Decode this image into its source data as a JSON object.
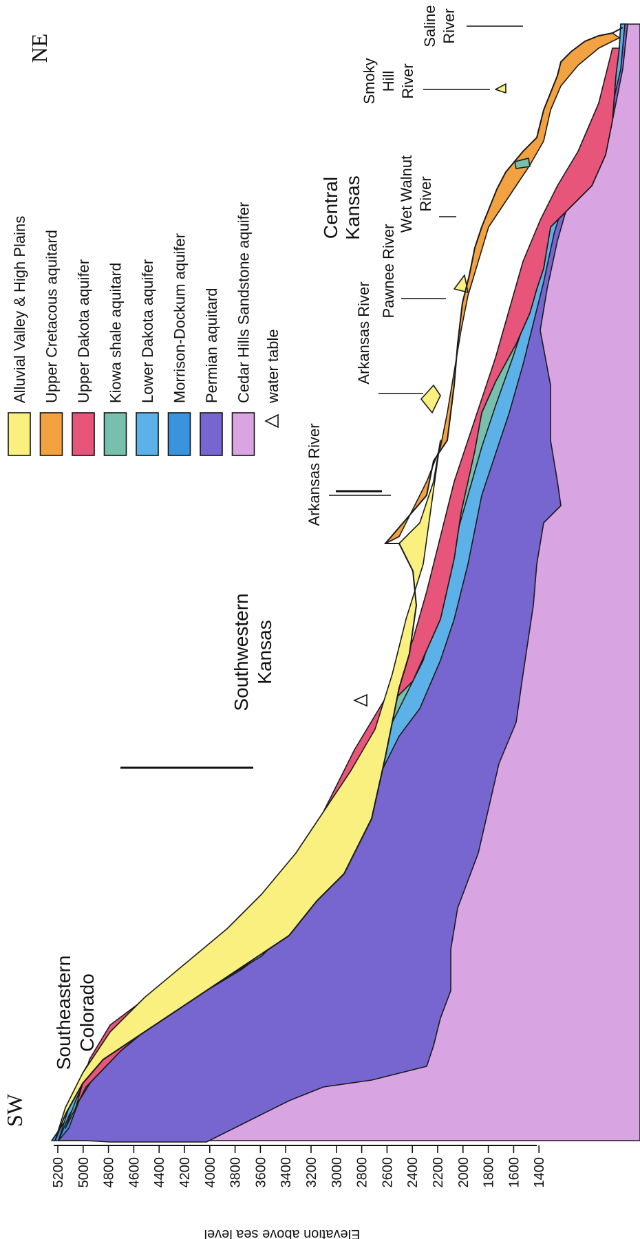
{
  "axis": {
    "label": "Elevation above sea level",
    "ticks": [
      "5200",
      "5000",
      "4800",
      "4600",
      "4400",
      "4200",
      "4000",
      "3800",
      "3600",
      "3400",
      "3200",
      "3000",
      "2800",
      "2600",
      "2400",
      "2200",
      "2000",
      "1800",
      "1600",
      "1400"
    ]
  },
  "ends": {
    "sw": "SW",
    "ne": "NE"
  },
  "regions": {
    "southeastern_colorado": [
      "Southeastern",
      "Colorado"
    ],
    "southwestern_kansas": [
      "Southwestern",
      "Kansas"
    ],
    "central_kansas": [
      "Central",
      "Kansas"
    ]
  },
  "rivers": {
    "arkansas_1": "Arkansas River",
    "arkansas_2": "Arkansas River",
    "pawnee": "Pawnee River",
    "wet_walnut": [
      "Wet Walnut",
      "River"
    ],
    "smoky_hill": [
      "Smoky",
      "Hill",
      "River"
    ],
    "saline": [
      "Saline",
      "River"
    ]
  },
  "legend": [
    {
      "label": "Alluvial Valley & High Plains",
      "color": "#f9f07f"
    },
    {
      "label": "Upper Cretacous aquitard",
      "color": "#f3a242"
    },
    {
      "label": "Upper Dakota aquifer",
      "color": "#e8557a"
    },
    {
      "label": "Kiowa shale aquitard",
      "color": "#77c0ae"
    },
    {
      "label": "Lower Dakota aquifer",
      "color": "#5cb2e8"
    },
    {
      "label": "Morrison-Dockum aquifer",
      "color": "#3a93dd"
    },
    {
      "label": "Permian aquitard",
      "color": "#7766cf"
    },
    {
      "label": "Cedar Hills Sandstone aquifer",
      "color": "#d8a4e2"
    }
  ],
  "water_table": {
    "label": "water table",
    "icon": "triangle-down-icon"
  }
}
